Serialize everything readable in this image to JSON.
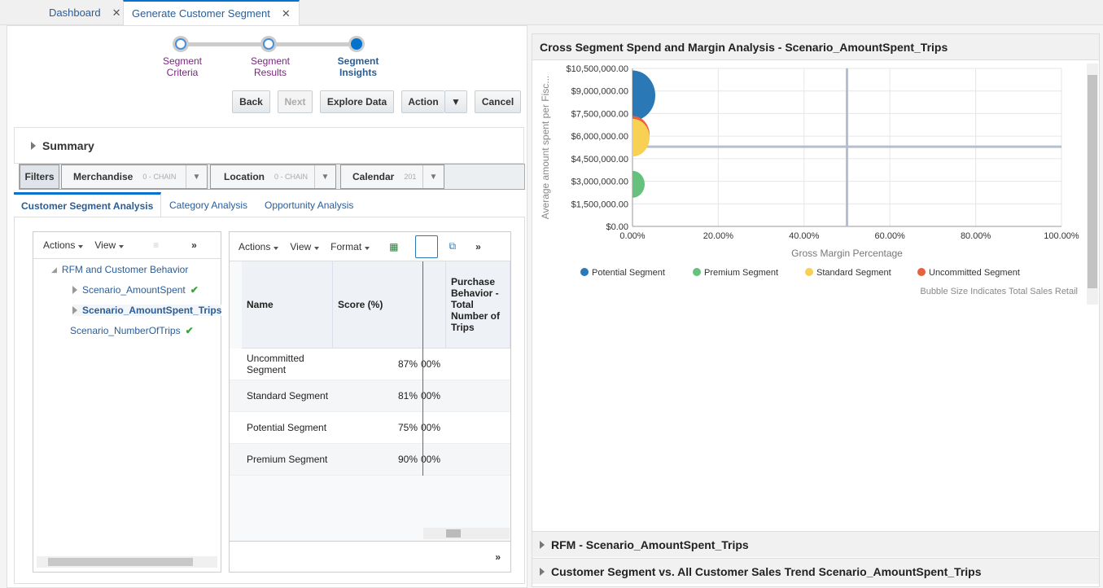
{
  "tabs": [
    {
      "label": "Dashboard"
    },
    {
      "label": "Generate Customer Segment"
    }
  ],
  "train": [
    {
      "l1": "Segment",
      "l2": "Criteria"
    },
    {
      "l1": "Segment",
      "l2": "Results"
    },
    {
      "l1": "Segment",
      "l2": "Insights"
    }
  ],
  "buttons": {
    "back": "Back",
    "next": "Next",
    "explore": "Explore Data",
    "action": "Action",
    "cancel": "Cancel"
  },
  "summary": "Summary",
  "filters": {
    "label": "Filters",
    "items": [
      {
        "name": "Merchandise",
        "value": "0 - CHAIN"
      },
      {
        "name": "Location",
        "value": "0 - CHAIN"
      },
      {
        "name": "Calendar",
        "value": "201"
      }
    ]
  },
  "analysis_tabs": [
    "Customer Segment Analysis",
    "Category Analysis",
    "Opportunity Analysis"
  ],
  "tree": {
    "actions": "Actions",
    "view": "View",
    "more": "»",
    "root": "RFM and Customer Behavior",
    "nodes": [
      "Scenario_AmountSpent",
      "Scenario_AmountSpent_Trips",
      "Scenario_NumberOfTrips"
    ]
  },
  "grid": {
    "actions": "Actions",
    "view": "View",
    "format": "Format",
    "more": "»",
    "headers": [
      "Name",
      "Score (%)",
      "Purchase Behavior - Total Number of Trips"
    ],
    "rows": [
      {
        "name": "Uncommitted Segment",
        "score": "87%",
        "clip": "00%"
      },
      {
        "name": "Standard Segment",
        "score": "81%",
        "clip": "00%"
      },
      {
        "name": "Potential Segment",
        "score": "75%",
        "clip": "00%"
      },
      {
        "name": "Premium Segment",
        "score": "90%",
        "clip": "00%"
      }
    ]
  },
  "panel_title": "Cross Segment Spend and Margin Analysis - Scenario_AmountSpent_Trips",
  "sections": [
    "RFM - Scenario_AmountSpent_Trips",
    "Customer Segment vs. All Customer Sales Trend Scenario_AmountSpent_Trips"
  ],
  "chart_data": {
    "type": "scatter",
    "title": "Cross Segment Spend and Margin Analysis - Scenario_AmountSpent_Trips",
    "xlabel": "Gross Margin Percentage",
    "ylabel": "Average amount spent per Fisc...",
    "xlim": [
      0,
      100
    ],
    "ylim": [
      0,
      10500000
    ],
    "xticks": [
      "0.00%",
      "20.00%",
      "40.00%",
      "60.00%",
      "80.00%",
      "100.00%"
    ],
    "yticks": [
      "$0.00",
      "$1,500,000.00",
      "$3,000,000.00",
      "$4,500,000.00",
      "$6,000,000.00",
      "$7,500,000.00",
      "$9,000,000.00",
      "$10,500,000.00"
    ],
    "reference_lines": {
      "x": 50,
      "y": 5300000
    },
    "note": "Bubble Size Indicates Total Sales Retail",
    "series": [
      {
        "name": "Potential Segment",
        "color": "#2a78b5",
        "x": 0,
        "y": 8700000,
        "size": 28
      },
      {
        "name": "Premium Segment",
        "color": "#66c17c",
        "x": 0,
        "y": 2800000,
        "size": 15
      },
      {
        "name": "Uncommitted Segment",
        "color": "#e8603c",
        "x": 0,
        "y": 6100000,
        "size": 21
      },
      {
        "name": "Standard Segment",
        "color": "#f8d053",
        "x": 0,
        "y": 5900000,
        "size": 21
      }
    ],
    "legend": [
      "Potential Segment",
      "Premium Segment",
      "Standard Segment",
      "Uncommitted Segment"
    ],
    "legend_colors": [
      "#2a78b5",
      "#66c17c",
      "#f8d053",
      "#e8603c"
    ]
  }
}
